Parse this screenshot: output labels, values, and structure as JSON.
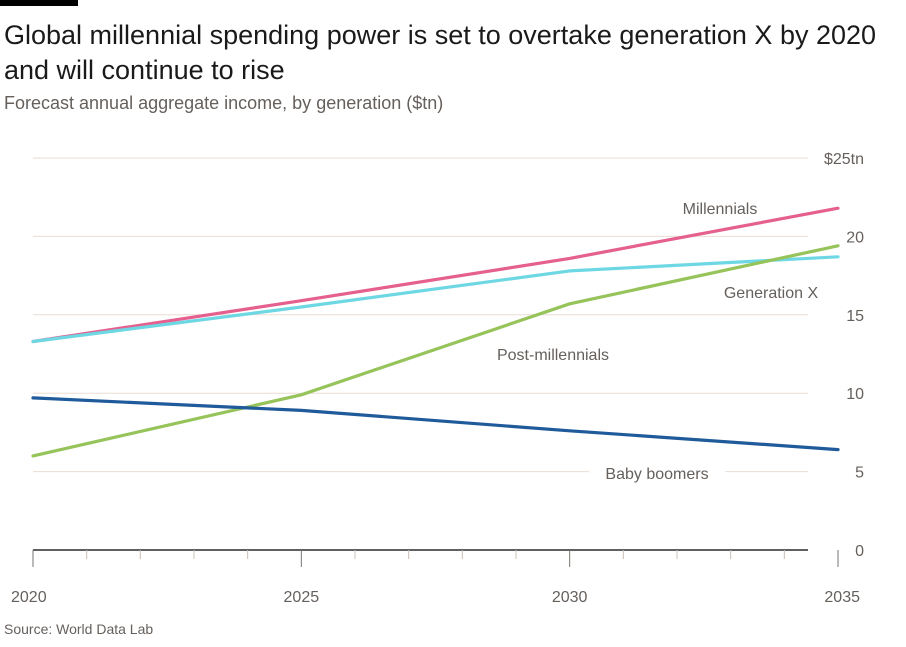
{
  "header": {
    "title": "Global millennial spending power is set to overtake generation X by 2020 and will continue to rise",
    "subtitle": "Forecast annual aggregate income, by generation ($tn)"
  },
  "footer": {
    "source": "Source: World Data Lab"
  },
  "chart_data": {
    "type": "line",
    "title": "Global millennial spending power is set to overtake generation X by 2020 and will continue to rise",
    "subtitle": "Forecast annual aggregate income, by generation ($tn)",
    "xlabel": "",
    "ylabel": "",
    "xlim": [
      2020,
      2035
    ],
    "ylim": [
      0,
      25
    ],
    "x_ticks": [
      "2020",
      "2025",
      "2030",
      "2035"
    ],
    "y_ticks": [
      {
        "value": 0,
        "label": "0"
      },
      {
        "value": 5,
        "label": "5"
      },
      {
        "value": 10,
        "label": "10"
      },
      {
        "value": 15,
        "label": "15"
      },
      {
        "value": 20,
        "label": "20"
      },
      {
        "value": 25,
        "label": "$25tn"
      }
    ],
    "grid": true,
    "series": [
      {
        "name": "Millennials",
        "color": "#e5608e",
        "points": [
          [
            2020,
            13.3
          ],
          [
            2025,
            15.9
          ],
          [
            2030,
            18.6
          ],
          [
            2035,
            21.8
          ]
        ]
      },
      {
        "name": "Generation X",
        "color": "#6dd7e3",
        "points": [
          [
            2020,
            13.3
          ],
          [
            2025,
            15.5
          ],
          [
            2030,
            17.8
          ],
          [
            2035,
            18.7
          ]
        ]
      },
      {
        "name": "Post-millennials",
        "color": "#96c35a",
        "points": [
          [
            2020,
            6.0
          ],
          [
            2025,
            9.9
          ],
          [
            2030,
            15.7
          ],
          [
            2035,
            19.4
          ]
        ]
      },
      {
        "name": "Baby boomers",
        "color": "#1f5a9a",
        "points": [
          [
            2020,
            9.7
          ],
          [
            2025,
            8.9
          ],
          [
            2030,
            7.6
          ],
          [
            2035,
            6.4
          ]
        ]
      }
    ],
    "source": "Source: World Data Lab"
  }
}
